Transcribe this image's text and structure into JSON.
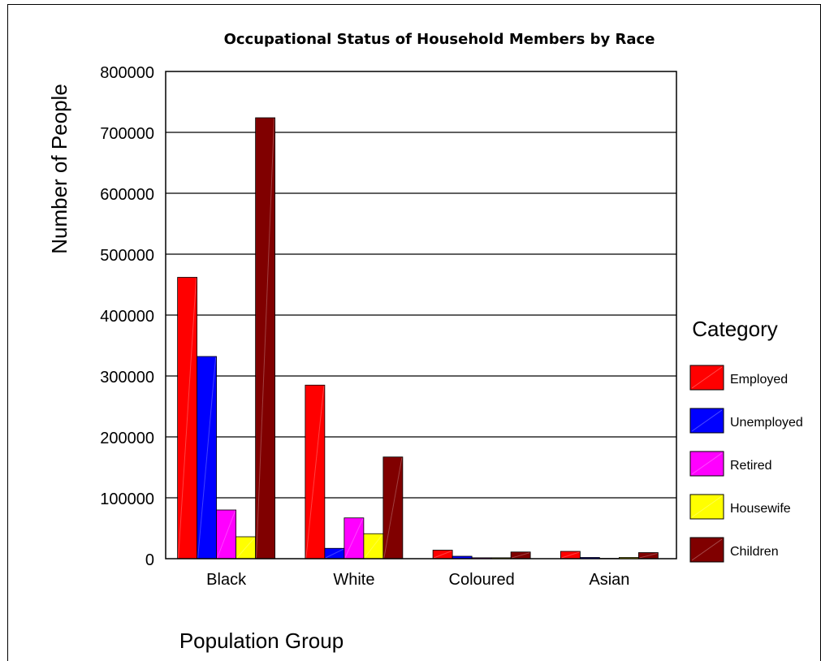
{
  "chart_data": {
    "type": "bar",
    "title": "Occupational Status of Household Members by Race",
    "xlabel": "Population Group",
    "ylabel": "Number of People",
    "categories": [
      "Black",
      "White",
      "Coloured",
      "Asian"
    ],
    "ylim": [
      0,
      800000
    ],
    "yticks": [
      "0",
      "100000",
      "200000",
      "300000",
      "400000",
      "500000",
      "600000",
      "700000",
      "800000"
    ],
    "grid": true,
    "legend_title": "Category",
    "legend_position": "right",
    "series": [
      {
        "name": "Employed",
        "color": "#ff0000",
        "values": [
          462000,
          285000,
          14000,
          12000
        ]
      },
      {
        "name": "Unemployed",
        "color": "#0000ff",
        "values": [
          332000,
          17000,
          4000,
          2000
        ]
      },
      {
        "name": "Retired",
        "color": "#ff00ff",
        "values": [
          80000,
          67000,
          1500,
          500
        ]
      },
      {
        "name": "Housewife",
        "color": "#ffff00",
        "values": [
          36000,
          41000,
          1500,
          2000
        ]
      },
      {
        "name": "Children",
        "color": "#800000",
        "values": [
          724000,
          167000,
          11000,
          10000
        ]
      }
    ]
  }
}
